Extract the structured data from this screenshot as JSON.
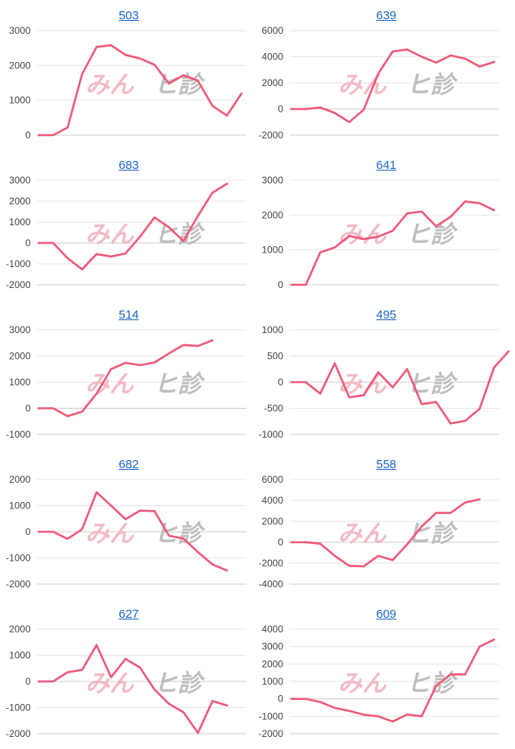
{
  "colors": {
    "line": "#ef5a79",
    "grid": "#e6e6e6",
    "axis": "#cccccc",
    "title": "#1a66c8",
    "tick": "#444444",
    "watermark_pink": "#f2b4bf",
    "watermark_gray": "#b9b9b9"
  },
  "watermark": {
    "part1": "みん",
    "part2": "ヒ診"
  },
  "chart_data": [
    {
      "id": "chart-503",
      "type": "line",
      "title": "503",
      "yticks": [
        0,
        1000,
        2000,
        3000
      ],
      "ylim": [
        0,
        3000
      ],
      "values": [
        0,
        0,
        220,
        1750,
        2530,
        2580,
        2300,
        2200,
        2020,
        1480,
        1720,
        1560,
        840,
        560,
        1190
      ]
    },
    {
      "id": "chart-639",
      "type": "line",
      "title": "639",
      "yticks": [
        -2000,
        0,
        2000,
        4000,
        6000
      ],
      "ylim": [
        -2000,
        6000
      ],
      "values": [
        0,
        0,
        120,
        -300,
        -1000,
        -50,
        2700,
        4400,
        4550,
        4000,
        3550,
        4100,
        3850,
        3250,
        3600
      ]
    },
    {
      "id": "chart-683",
      "type": "line",
      "title": "683",
      "yticks": [
        -2000,
        -1000,
        0,
        1000,
        2000,
        3000
      ],
      "ylim": [
        -2000,
        3000
      ],
      "values": [
        0,
        0,
        -730,
        -1260,
        -530,
        -650,
        -500,
        300,
        1220,
        750,
        90,
        1300,
        2400,
        2830
      ]
    },
    {
      "id": "chart-641",
      "type": "line",
      "title": "641",
      "yticks": [
        0,
        1000,
        2000,
        3000
      ],
      "ylim": [
        0,
        3000
      ],
      "values": [
        0,
        0,
        930,
        1070,
        1400,
        1310,
        1380,
        1550,
        2050,
        2100,
        1680,
        1950,
        2390,
        2340,
        2140
      ]
    },
    {
      "id": "chart-514",
      "type": "line",
      "title": "514",
      "yticks": [
        -1000,
        0,
        1000,
        2000,
        3000
      ],
      "ylim": [
        -1000,
        3000
      ],
      "values": [
        0,
        0,
        -300,
        -130,
        560,
        1500,
        1740,
        1650,
        1750,
        2100,
        2420,
        2380,
        2600
      ]
    },
    {
      "id": "chart-495",
      "type": "line",
      "title": "495",
      "yticks": [
        -1000,
        -500,
        0,
        500,
        1000
      ],
      "ylim": [
        -1000,
        1000
      ],
      "values": [
        0,
        0,
        -220,
        360,
        -290,
        -250,
        190,
        -100,
        250,
        -420,
        -380,
        -790,
        -740,
        -510,
        280,
        590
      ]
    },
    {
      "id": "chart-682",
      "type": "line",
      "title": "682",
      "yticks": [
        -2000,
        -1000,
        0,
        1000,
        2000
      ],
      "ylim": [
        -2000,
        2000
      ],
      "values": [
        0,
        0,
        -270,
        100,
        1510,
        1000,
        480,
        810,
        790,
        -150,
        -260,
        -780,
        -1250,
        -1480
      ]
    },
    {
      "id": "chart-558",
      "type": "line",
      "title": "558",
      "yticks": [
        -4000,
        -2000,
        0,
        2000,
        4000,
        6000
      ],
      "ylim": [
        -4000,
        6000
      ],
      "values": [
        0,
        0,
        -140,
        -1300,
        -2250,
        -2300,
        -1300,
        -1700,
        -200,
        1500,
        2800,
        2800,
        3800,
        4100
      ]
    },
    {
      "id": "chart-627",
      "type": "line",
      "title": "627",
      "yticks": [
        -2000,
        -1000,
        0,
        1000,
        2000
      ],
      "ylim": [
        -2000,
        2000
      ],
      "values": [
        0,
        0,
        350,
        440,
        1390,
        160,
        860,
        530,
        -310,
        -860,
        -1180,
        -1970,
        -750,
        -920
      ]
    },
    {
      "id": "chart-609",
      "type": "line",
      "title": "609",
      "yticks": [
        -2000,
        -1000,
        0,
        1000,
        2000,
        3000,
        4000
      ],
      "ylim": [
        -2000,
        4000
      ],
      "values": [
        0,
        0,
        -180,
        -520,
        -690,
        -910,
        -1000,
        -1300,
        -900,
        -1000,
        740,
        1400,
        1400,
        3000,
        3400
      ]
    }
  ]
}
